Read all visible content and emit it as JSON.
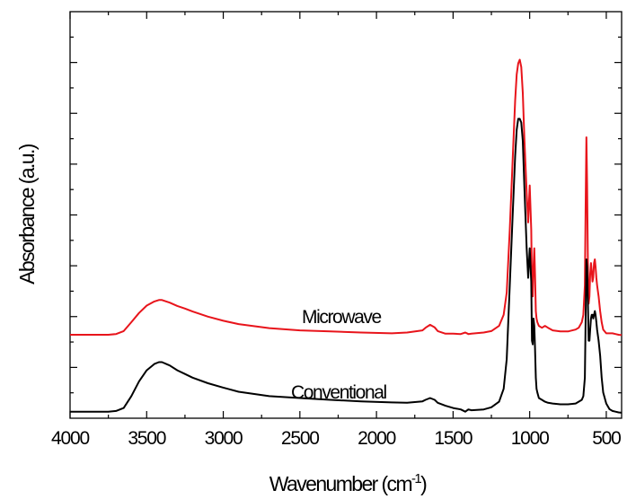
{
  "chart_data": {
    "type": "line",
    "xlabel": "Wavenumber (cm",
    "xlabel_sup": "-1",
    "xlabel_end": ")",
    "ylabel": "Absorbance (a.u.)",
    "x_reversed": true,
    "xlim": [
      4000,
      400
    ],
    "ylim": [
      0,
      1.0
    ],
    "x_ticks": [
      4000,
      3500,
      3000,
      2500,
      2000,
      1500,
      1000,
      500
    ],
    "y_ticks_labeled": false,
    "grid": false,
    "series": [
      {
        "name": "Microwave",
        "color": "#e8141b",
        "x": [
          4000,
          3750,
          3700,
          3650,
          3600,
          3550,
          3500,
          3450,
          3420,
          3400,
          3350,
          3300,
          3250,
          3200,
          3100,
          3000,
          2900,
          2700,
          2500,
          2300,
          2100,
          1900,
          1800,
          1700,
          1680,
          1650,
          1620,
          1600,
          1550,
          1500,
          1450,
          1420,
          1400,
          1380,
          1300,
          1250,
          1200,
          1170,
          1150,
          1130,
          1110,
          1095,
          1085,
          1075,
          1065,
          1055,
          1045,
          1035,
          1020,
          1010,
          1000,
          990,
          985,
          980,
          975,
          970,
          965,
          960,
          955,
          950,
          940,
          920,
          900,
          880,
          850,
          800,
          750,
          700,
          680,
          660,
          650,
          640,
          635,
          630,
          625,
          620,
          615,
          610,
          605,
          600,
          595,
          590,
          585,
          580,
          575,
          570,
          565,
          560,
          550,
          540,
          530,
          520,
          500,
          480,
          460,
          440,
          420,
          400
        ],
        "y": [
          0.216,
          0.216,
          0.218,
          0.226,
          0.25,
          0.275,
          0.295,
          0.306,
          0.31,
          0.31,
          0.303,
          0.294,
          0.287,
          0.279,
          0.265,
          0.254,
          0.245,
          0.234,
          0.228,
          0.225,
          0.222,
          0.22,
          0.222,
          0.228,
          0.235,
          0.243,
          0.236,
          0.226,
          0.219,
          0.219,
          0.218,
          0.222,
          0.218,
          0.219,
          0.222,
          0.226,
          0.24,
          0.27,
          0.33,
          0.5,
          0.7,
          0.85,
          0.92,
          0.95,
          0.96,
          0.94,
          0.87,
          0.75,
          0.6,
          0.52,
          0.62,
          0.5,
          0.35,
          0.32,
          0.4,
          0.45,
          0.38,
          0.28,
          0.26,
          0.25,
          0.24,
          0.235,
          0.24,
          0.235,
          0.228,
          0.225,
          0.225,
          0.23,
          0.235,
          0.25,
          0.27,
          0.35,
          0.55,
          0.75,
          0.62,
          0.4,
          0.3,
          0.32,
          0.38,
          0.41,
          0.39,
          0.36,
          0.37,
          0.41,
          0.42,
          0.4,
          0.37,
          0.35,
          0.32,
          0.28,
          0.25,
          0.23,
          0.22,
          0.22,
          0.22,
          0.218,
          0.216,
          0.215
        ]
      },
      {
        "name": "Conventional",
        "color": "#000000",
        "x": [
          4000,
          3750,
          3700,
          3650,
          3600,
          3550,
          3500,
          3450,
          3420,
          3400,
          3350,
          3300,
          3250,
          3200,
          3100,
          3000,
          2900,
          2700,
          2500,
          2300,
          2100,
          1900,
          1800,
          1700,
          1680,
          1650,
          1620,
          1600,
          1550,
          1500,
          1450,
          1420,
          1400,
          1380,
          1300,
          1250,
          1200,
          1170,
          1150,
          1130,
          1110,
          1095,
          1085,
          1075,
          1065,
          1055,
          1045,
          1035,
          1020,
          1010,
          1000,
          990,
          985,
          980,
          975,
          970,
          965,
          960,
          955,
          950,
          940,
          920,
          900,
          880,
          850,
          800,
          750,
          700,
          680,
          660,
          650,
          640,
          635,
          630,
          625,
          620,
          615,
          610,
          605,
          600,
          595,
          590,
          585,
          580,
          575,
          570,
          565,
          560,
          550,
          540,
          530,
          520,
          500,
          480,
          460,
          440,
          420,
          400
        ],
        "y": [
          0.008,
          0.008,
          0.01,
          0.018,
          0.05,
          0.09,
          0.12,
          0.137,
          0.142,
          0.142,
          0.133,
          0.12,
          0.11,
          0.1,
          0.085,
          0.073,
          0.062,
          0.05,
          0.045,
          0.04,
          0.036,
          0.033,
          0.032,
          0.036,
          0.04,
          0.045,
          0.04,
          0.032,
          0.024,
          0.018,
          0.014,
          0.008,
          0.014,
          0.012,
          0.014,
          0.02,
          0.035,
          0.07,
          0.15,
          0.35,
          0.55,
          0.7,
          0.77,
          0.8,
          0.8,
          0.79,
          0.74,
          0.62,
          0.45,
          0.37,
          0.45,
          0.36,
          0.2,
          0.19,
          0.26,
          0.24,
          0.18,
          0.1,
          0.07,
          0.06,
          0.045,
          0.04,
          0.035,
          0.032,
          0.03,
          0.028,
          0.028,
          0.03,
          0.035,
          0.04,
          0.05,
          0.1,
          0.25,
          0.42,
          0.4,
          0.3,
          0.2,
          0.2,
          0.23,
          0.26,
          0.27,
          0.27,
          0.26,
          0.27,
          0.28,
          0.27,
          0.25,
          0.23,
          0.2,
          0.16,
          0.1,
          0.06,
          0.03,
          0.015,
          0.01,
          0.008,
          0.006,
          0.005
        ]
      }
    ]
  }
}
